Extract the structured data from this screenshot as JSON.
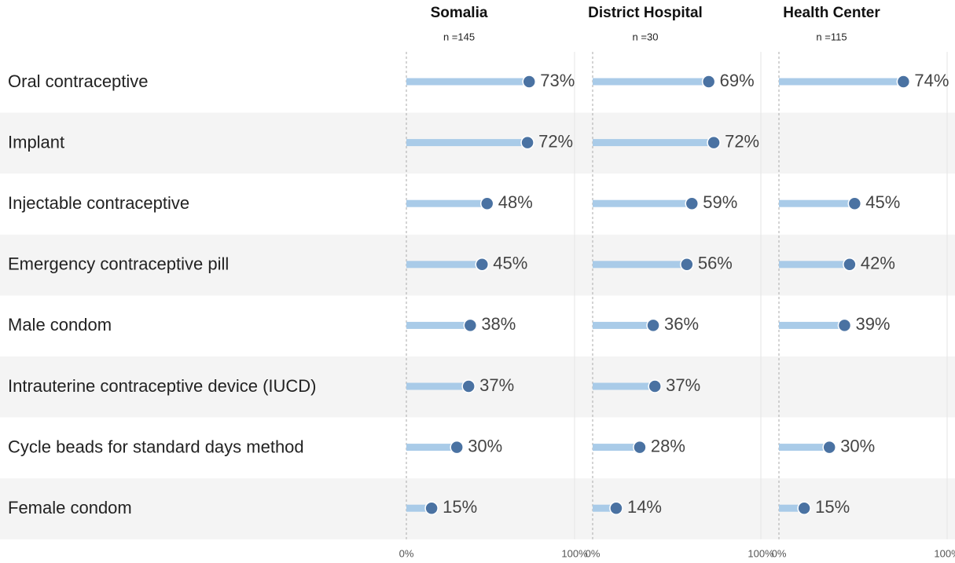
{
  "chart_data": {
    "type": "lollipop",
    "categories": [
      "Oral contraceptive",
      "Implant",
      "Injectable contraceptive",
      "Emergency contraceptive pill",
      "Male condom",
      "Intrauterine contraceptive device (IUCD)",
      "Cycle beads for standard days method",
      "Female condom"
    ],
    "series": [
      {
        "name": "Somalia",
        "subtitle": "n =145",
        "values": [
          73,
          72,
          48,
          45,
          38,
          37,
          30,
          15
        ],
        "value_labels": [
          "73%",
          "72%",
          "48%",
          "45%",
          "38%",
          "37%",
          "30%",
          "15%"
        ]
      },
      {
        "name": "District Hospital",
        "subtitle": "n =30",
        "values": [
          69,
          72,
          59,
          56,
          36,
          37,
          28,
          14
        ],
        "value_labels": [
          "69%",
          "72%",
          "59%",
          "56%",
          "36%",
          "37%",
          "28%",
          "14%"
        ]
      },
      {
        "name": "Health Center",
        "subtitle": "n =115",
        "values": [
          74,
          null,
          45,
          42,
          39,
          null,
          30,
          15
        ],
        "value_labels": [
          "74%",
          null,
          "45%",
          "42%",
          "39%",
          null,
          "30%",
          "15%"
        ]
      }
    ],
    "bar_color": "#a9cbe8",
    "dot_color": "#4a72a2",
    "xlim": [
      0,
      100
    ],
    "xticks": [
      {
        "value": 0,
        "label": "0%"
      },
      {
        "value": 100,
        "label": "100%"
      }
    ]
  }
}
